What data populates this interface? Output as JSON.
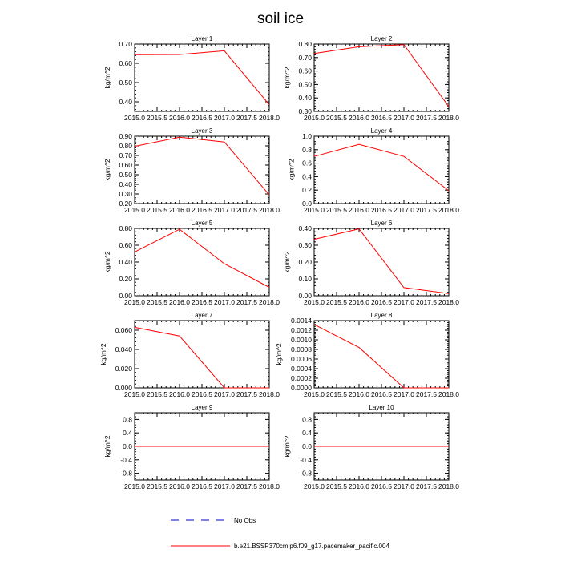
{
  "figure": {
    "title": "soil ice",
    "legend": [
      {
        "label": "No Obs",
        "color": "#0000cc",
        "dash": true
      },
      {
        "label": "b.e21.BSSP370cmip6.f09_g17.pacemaker_pacific.004",
        "color": "#ff0000",
        "dash": false
      }
    ]
  },
  "chart_data": [
    {
      "type": "line",
      "title": "Layer 1",
      "xlabel": "",
      "ylabel": "kg/m^2",
      "xlim": [
        2015.0,
        2018.0
      ],
      "ylim": [
        0.35,
        0.7
      ],
      "yticks": [
        0.4,
        0.5,
        0.6,
        0.7
      ],
      "ytick_labels": [
        "0.40",
        "0.50",
        "0.60",
        "0.70"
      ],
      "xticks": [
        2015.0,
        2015.5,
        2016.0,
        2016.5,
        2017.0,
        2017.5,
        2018.0
      ],
      "xtick_labels": [
        "2015.0",
        "2015.5",
        "2016.0",
        "2016.5",
        "2017.0",
        "2017.5",
        "2018.0"
      ],
      "series": [
        {
          "x": [
            2015,
            2016,
            2017,
            2018
          ],
          "y": [
            0.645,
            0.646,
            0.665,
            0.385
          ],
          "color": "#ff0000"
        }
      ]
    },
    {
      "type": "line",
      "title": "Layer 2",
      "xlabel": "",
      "ylabel": "kg/m^2",
      "xlim": [
        2015.0,
        2018.0
      ],
      "ylim": [
        0.3,
        0.8
      ],
      "yticks": [
        0.3,
        0.4,
        0.5,
        0.6,
        0.7,
        0.8
      ],
      "ytick_labels": [
        "0.30",
        "0.40",
        "0.50",
        "0.60",
        "0.70",
        "0.80"
      ],
      "xticks": [
        2015.0,
        2015.5,
        2016.0,
        2016.5,
        2017.0,
        2017.5,
        2018.0
      ],
      "xtick_labels": [
        "2015.0",
        "2015.5",
        "2016.0",
        "2016.5",
        "2017.0",
        "2017.5",
        "2018.0"
      ],
      "series": [
        {
          "x": [
            2015,
            2016,
            2017,
            2018
          ],
          "y": [
            0.73,
            0.78,
            0.795,
            0.335
          ],
          "color": "#ff0000"
        }
      ]
    },
    {
      "type": "line",
      "title": "Layer 3",
      "xlabel": "",
      "ylabel": "kg/m^2",
      "xlim": [
        2015.0,
        2018.0
      ],
      "ylim": [
        0.2,
        0.9
      ],
      "yticks": [
        0.2,
        0.3,
        0.4,
        0.5,
        0.6,
        0.7,
        0.8,
        0.9
      ],
      "ytick_labels": [
        "0.20",
        "0.30",
        "0.40",
        "0.50",
        "0.60",
        "0.70",
        "0.80",
        "0.90"
      ],
      "xticks": [
        2015.0,
        2015.5,
        2016.0,
        2016.5,
        2017.0,
        2017.5,
        2018.0
      ],
      "xtick_labels": [
        "2015.0",
        "2015.5",
        "2016.0",
        "2016.5",
        "2017.0",
        "2017.5",
        "2018.0"
      ],
      "series": [
        {
          "x": [
            2015,
            2016,
            2017,
            2018
          ],
          "y": [
            0.795,
            0.89,
            0.84,
            0.29
          ],
          "color": "#ff0000"
        }
      ]
    },
    {
      "type": "line",
      "title": "Layer 4",
      "xlabel": "",
      "ylabel": "kg/m^2",
      "xlim": [
        2015.0,
        2018.0
      ],
      "ylim": [
        0.0,
        1.0
      ],
      "yticks": [
        0.0,
        0.2,
        0.4,
        0.6,
        0.8,
        1.0
      ],
      "ytick_labels": [
        "0.0",
        "0.2",
        "0.4",
        "0.6",
        "0.8",
        "1.0"
      ],
      "xticks": [
        2015.0,
        2015.5,
        2016.0,
        2016.5,
        2017.0,
        2017.5,
        2018.0
      ],
      "xtick_labels": [
        "2015.0",
        "2015.5",
        "2016.0",
        "2016.5",
        "2017.0",
        "2017.5",
        "2018.0"
      ],
      "series": [
        {
          "x": [
            2015,
            2016,
            2017,
            2018
          ],
          "y": [
            0.7,
            0.88,
            0.7,
            0.19
          ],
          "color": "#ff0000"
        }
      ]
    },
    {
      "type": "line",
      "title": "Layer 5",
      "xlabel": "",
      "ylabel": "kg/m^2",
      "xlim": [
        2015.0,
        2018.0
      ],
      "ylim": [
        0.0,
        0.8
      ],
      "yticks": [
        0.0,
        0.2,
        0.4,
        0.6,
        0.8
      ],
      "ytick_labels": [
        "0.00",
        "0.20",
        "0.40",
        "0.60",
        "0.80"
      ],
      "xticks": [
        2015.0,
        2015.5,
        2016.0,
        2016.5,
        2017.0,
        2017.5,
        2018.0
      ],
      "xtick_labels": [
        "2015.0",
        "2015.5",
        "2016.0",
        "2016.5",
        "2017.0",
        "2017.5",
        "2018.0"
      ],
      "series": [
        {
          "x": [
            2015,
            2016,
            2017,
            2018
          ],
          "y": [
            0.52,
            0.79,
            0.38,
            0.1
          ],
          "color": "#ff0000"
        }
      ]
    },
    {
      "type": "line",
      "title": "Layer 6",
      "xlabel": "",
      "ylabel": "kg/m^2",
      "xlim": [
        2015.0,
        2018.0
      ],
      "ylim": [
        0.0,
        0.4
      ],
      "yticks": [
        0.0,
        0.1,
        0.2,
        0.3,
        0.4
      ],
      "ytick_labels": [
        "0.00",
        "0.10",
        "0.20",
        "0.30",
        "0.40"
      ],
      "xticks": [
        2015.0,
        2015.5,
        2016.0,
        2016.5,
        2017.0,
        2017.5,
        2018.0
      ],
      "xtick_labels": [
        "2015.0",
        "2015.5",
        "2016.0",
        "2016.5",
        "2017.0",
        "2017.5",
        "2018.0"
      ],
      "series": [
        {
          "x": [
            2015,
            2016,
            2017,
            2018
          ],
          "y": [
            0.335,
            0.397,
            0.048,
            0.013
          ],
          "color": "#ff0000"
        }
      ]
    },
    {
      "type": "line",
      "title": "Layer 7",
      "xlabel": "",
      "ylabel": "kg/m^2",
      "xlim": [
        2015.0,
        2018.0
      ],
      "ylim": [
        0.0,
        0.07
      ],
      "yticks": [
        0.0,
        0.02,
        0.04,
        0.06
      ],
      "ytick_labels": [
        "0.000",
        "0.020",
        "0.040",
        "0.060"
      ],
      "xticks": [
        2015.0,
        2015.5,
        2016.0,
        2016.5,
        2017.0,
        2017.5,
        2018.0
      ],
      "xtick_labels": [
        "2015.0",
        "2015.5",
        "2016.0",
        "2016.5",
        "2017.0",
        "2017.5",
        "2018.0"
      ],
      "series": [
        {
          "x": [
            2015,
            2016,
            2017,
            2018
          ],
          "y": [
            0.063,
            0.054,
            0.0,
            0.0
          ],
          "color": "#ff0000"
        }
      ]
    },
    {
      "type": "line",
      "title": "Layer 8",
      "xlabel": "",
      "ylabel": "kg/m^2",
      "xlim": [
        2015.0,
        2018.0
      ],
      "ylim": [
        0.0,
        0.0014
      ],
      "yticks": [
        0.0,
        0.0002,
        0.0004,
        0.0006,
        0.0008,
        0.001,
        0.0012,
        0.0014
      ],
      "ytick_labels": [
        "0.0000",
        "0.0002",
        "0.0004",
        "0.0006",
        "0.0008",
        "0.0010",
        "0.0012",
        "0.0014"
      ],
      "xticks": [
        2015.0,
        2015.5,
        2016.0,
        2016.5,
        2017.0,
        2017.5,
        2018.0
      ],
      "xtick_labels": [
        "2015.0",
        "2015.5",
        "2016.0",
        "2016.5",
        "2017.0",
        "2017.5",
        "2018.0"
      ],
      "series": [
        {
          "x": [
            2015,
            2016,
            2017,
            2018
          ],
          "y": [
            0.00132,
            0.00084,
            0.0,
            0.0
          ],
          "color": "#ff0000"
        }
      ]
    },
    {
      "type": "line",
      "title": "Layer 9",
      "xlabel": "",
      "ylabel": "kg/m^2",
      "xlim": [
        2015.0,
        2018.0
      ],
      "ylim": [
        -1.0,
        1.0
      ],
      "yticks": [
        -0.8,
        -0.4,
        0.0,
        0.4,
        0.8
      ],
      "ytick_labels": [
        "-0.8",
        "-0.4",
        "0.0",
        "0.4",
        "0.8"
      ],
      "xticks": [
        2015.0,
        2015.5,
        2016.0,
        2016.5,
        2017.0,
        2017.5,
        2018.0
      ],
      "xtick_labels": [
        "2015.0",
        "2015.5",
        "2016.0",
        "2016.5",
        "2017.0",
        "2017.5",
        "2018.0"
      ],
      "series": [
        {
          "x": [
            2015,
            2016,
            2017,
            2018
          ],
          "y": [
            0.0,
            0.0,
            0.0,
            0.0
          ],
          "color": "#ff0000"
        }
      ]
    },
    {
      "type": "line",
      "title": "Layer 10",
      "xlabel": "",
      "ylabel": "kg/m^2",
      "xlim": [
        2015.0,
        2018.0
      ],
      "ylim": [
        -1.0,
        1.0
      ],
      "yticks": [
        -0.8,
        -0.4,
        0.0,
        0.4,
        0.8
      ],
      "ytick_labels": [
        "-0.8",
        "-0.4",
        "0.0",
        "0.4",
        "0.8"
      ],
      "xticks": [
        2015.0,
        2015.5,
        2016.0,
        2016.5,
        2017.0,
        2017.5,
        2018.0
      ],
      "xtick_labels": [
        "2015.0",
        "2015.5",
        "2016.0",
        "2016.5",
        "2017.0",
        "2017.5",
        "2018.0"
      ],
      "series": [
        {
          "x": [
            2015,
            2016,
            2017,
            2018
          ],
          "y": [
            0.0,
            0.0,
            0.0,
            0.0
          ],
          "color": "#ff0000"
        }
      ]
    }
  ]
}
